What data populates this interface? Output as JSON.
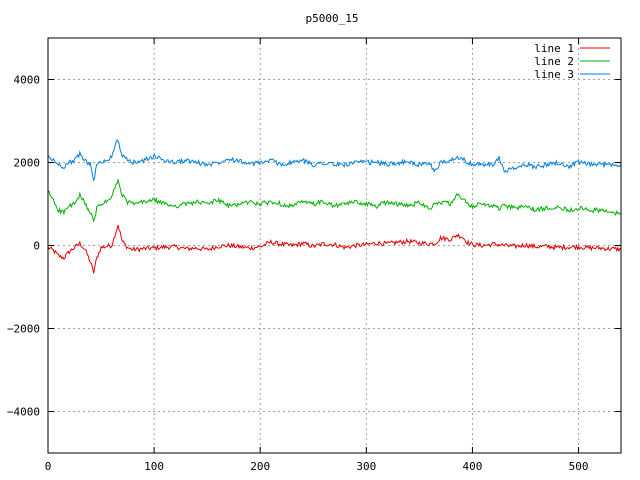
{
  "chart_data": {
    "type": "line",
    "title": "p5000_15",
    "xlabel": "",
    "ylabel": "",
    "xlim": [
      0,
      540
    ],
    "ylim": [
      -5000,
      5000
    ],
    "x_ticks": [
      0,
      100,
      200,
      300,
      400,
      500
    ],
    "y_ticks": [
      -4000,
      -2000,
      0,
      2000,
      4000
    ],
    "grid": true,
    "legend_position": "top-right",
    "colors": {
      "line 1": "#e00000",
      "line 2": "#00b000",
      "line 3": "#0080e0"
    },
    "x": [
      0,
      5,
      10,
      15,
      20,
      25,
      30,
      35,
      40,
      43,
      46,
      50,
      55,
      60,
      63,
      66,
      70,
      75,
      80,
      90,
      100,
      110,
      120,
      130,
      140,
      150,
      160,
      170,
      180,
      190,
      200,
      210,
      220,
      230,
      240,
      250,
      260,
      270,
      280,
      290,
      300,
      310,
      320,
      330,
      340,
      350,
      360,
      365,
      370,
      380,
      385,
      390,
      395,
      400,
      410,
      420,
      425,
      430,
      440,
      450,
      460,
      470,
      480,
      490,
      500,
      510,
      520,
      530,
      540
    ],
    "series": [
      {
        "name": "line 1",
        "values": [
          -50,
          -120,
          -250,
          -300,
          -150,
          -50,
          50,
          -100,
          -400,
          -650,
          -300,
          -50,
          -20,
          0,
          250,
          500,
          100,
          -50,
          -100,
          -80,
          -60,
          -40,
          -30,
          -80,
          -60,
          -100,
          -20,
          0,
          -30,
          -60,
          -30,
          80,
          30,
          0,
          50,
          -20,
          40,
          20,
          -50,
          0,
          20,
          60,
          40,
          80,
          100,
          60,
          40,
          60,
          180,
          150,
          250,
          220,
          80,
          20,
          0,
          30,
          20,
          0,
          -20,
          10,
          -30,
          -20,
          -50,
          -40,
          -30,
          -60,
          -60,
          -80,
          -90
        ]
      },
      {
        "name": "line 2",
        "values": [
          1300,
          1100,
          850,
          800,
          950,
          1000,
          1200,
          1000,
          800,
          550,
          900,
          1000,
          1050,
          1150,
          1400,
          1550,
          1200,
          1050,
          1000,
          1050,
          1100,
          1000,
          950,
          1000,
          1050,
          1000,
          1100,
          950,
          1000,
          1050,
          1000,
          1050,
          1000,
          950,
          1050,
          1000,
          1050,
          950,
          1000,
          1050,
          1000,
          950,
          1050,
          1000,
          950,
          1050,
          900,
          1000,
          1050,
          1000,
          1200,
          1150,
          1000,
          950,
          1000,
          950,
          900,
          950,
          900,
          950,
          850,
          900,
          950,
          850,
          900,
          850,
          850,
          800,
          750
        ]
      },
      {
        "name": "line 3",
        "values": [
          2150,
          2050,
          1950,
          1900,
          2000,
          2050,
          2200,
          2050,
          1950,
          1550,
          1950,
          2000,
          2050,
          2150,
          2400,
          2550,
          2150,
          2050,
          2000,
          2050,
          2150,
          2050,
          2000,
          2050,
          2000,
          1950,
          2000,
          2100,
          2050,
          1950,
          2000,
          2050,
          1950,
          2000,
          2050,
          1950,
          2000,
          1950,
          1950,
          2000,
          2000,
          2000,
          1950,
          2000,
          2000,
          1950,
          1950,
          1800,
          2000,
          2050,
          2150,
          2100,
          2000,
          1950,
          1950,
          1950,
          2100,
          1800,
          1850,
          1950,
          1900,
          1950,
          2000,
          1900,
          2000,
          1950,
          1950,
          1950,
          1950
        ]
      }
    ]
  }
}
